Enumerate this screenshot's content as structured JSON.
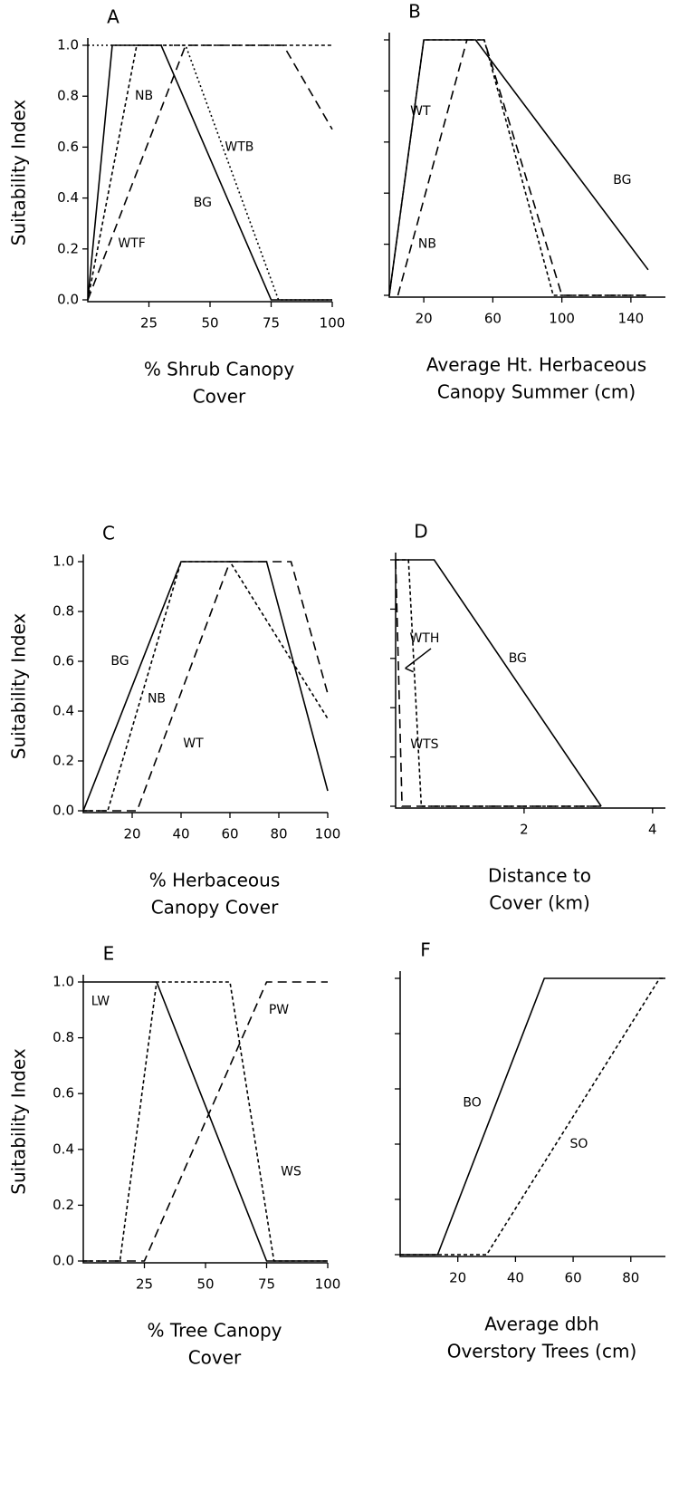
{
  "chart_data": [
    {
      "type": "line",
      "title": "A",
      "ylabel": "Suitability Index",
      "xlabel": [
        "% Shrub Canopy",
        "Cover"
      ],
      "xlim": [
        0,
        100
      ],
      "xticks": [
        25,
        50,
        75,
        100
      ],
      "ylim": [
        0,
        1
      ],
      "yticks": [
        {
          "value": 0,
          "label": "0.0"
        },
        0.2,
        0.4,
        0.6,
        0.8,
        {
          "value": 1,
          "label": "1.0"
        }
      ],
      "ytick_labels": true,
      "series": [
        {
          "name": "BG",
          "color": "#000000",
          "dash": "solid",
          "x": [
            0,
            10,
            30,
            75,
            100
          ],
          "values": [
            0,
            1,
            1,
            0,
            0
          ]
        },
        {
          "name": "NB",
          "color": "#000000",
          "dash": "short-dash",
          "x": [
            0,
            20,
            100
          ],
          "values": [
            0,
            1,
            1
          ]
        },
        {
          "name": "WTB",
          "color": "#000000",
          "dash": "dotted",
          "x": [
            0,
            40,
            78,
            100
          ],
          "values": [
            1,
            1,
            0,
            0
          ]
        },
        {
          "name": "WTF",
          "color": "#000000",
          "dash": "dashed",
          "x": [
            0,
            40,
            80,
            100
          ],
          "values": [
            0,
            1,
            1,
            0.67
          ]
        }
      ]
    },
    {
      "type": "line",
      "title": "B",
      "xlabel": [
        "Average Ht. Herbaceous",
        "Canopy Summer (cm)"
      ],
      "xlim": [
        0,
        160
      ],
      "xticks": [
        20,
        60,
        100,
        140
      ],
      "ylim": [
        0,
        1
      ],
      "yticks": [
        0,
        0.2,
        0.4,
        0.6,
        0.8,
        1
      ],
      "ytick_labels": false,
      "series": [
        {
          "name": "BG",
          "color": "#000000",
          "dash": "solid",
          "x": [
            0,
            20,
            50,
            150
          ],
          "values": [
            0,
            1,
            1,
            0.1
          ]
        },
        {
          "name": "WT",
          "color": "#000000",
          "dash": "short-dash",
          "x": [
            0,
            20,
            55,
            95,
            150
          ],
          "values": [
            0,
            1,
            1,
            0,
            0
          ]
        },
        {
          "name": "NB",
          "color": "#000000",
          "dash": "dashed",
          "x": [
            5,
            45,
            55,
            100,
            150
          ],
          "values": [
            0,
            1,
            1,
            0,
            0
          ]
        }
      ]
    },
    {
      "type": "line",
      "title": "C",
      "ylabel": "Suitability Index",
      "xlabel": [
        "% Herbaceous",
        "Canopy Cover"
      ],
      "xlim": [
        0,
        100
      ],
      "xticks": [
        20,
        40,
        60,
        80,
        100
      ],
      "ylim": [
        0,
        1
      ],
      "yticks": [
        {
          "value": 0,
          "label": "0.0"
        },
        0.2,
        0.4,
        0.6,
        0.8,
        {
          "value": 1,
          "label": "1.0"
        }
      ],
      "ytick_labels": true,
      "series": [
        {
          "name": "BG",
          "color": "#000000",
          "dash": "solid",
          "x": [
            0,
            40,
            75,
            100
          ],
          "values": [
            0,
            1,
            1,
            0.08
          ]
        },
        {
          "name": "NB",
          "color": "#000000",
          "dash": "short-dash",
          "x": [
            0,
            10,
            40,
            60,
            100
          ],
          "values": [
            0,
            0,
            1,
            1,
            0.37
          ]
        },
        {
          "name": "WT",
          "color": "#000000",
          "dash": "dashed",
          "x": [
            0,
            22,
            60,
            85,
            100
          ],
          "values": [
            0,
            0,
            1,
            1,
            0.47
          ]
        }
      ]
    },
    {
      "type": "line",
      "title": "D",
      "xlabel": [
        "Distance to",
        "Cover (km)"
      ],
      "xlim": [
        0,
        4.2
      ],
      "xticks": [
        2,
        4
      ],
      "ylim": [
        0,
        1
      ],
      "yticks": [
        0,
        0.2,
        0.4,
        0.6,
        0.8,
        1
      ],
      "ytick_labels": false,
      "series": [
        {
          "name": "BG",
          "color": "#000000",
          "dash": "solid",
          "x": [
            0,
            0.6,
            3.2
          ],
          "values": [
            1,
            1,
            0
          ]
        },
        {
          "name": "WTS",
          "color": "#000000",
          "dash": "short-dash",
          "x": [
            0,
            0.2,
            0.4,
            3.2
          ],
          "values": [
            1,
            1,
            0,
            0
          ]
        },
        {
          "name": "WTH",
          "color": "#000000",
          "dash": "dashed",
          "x": [
            0,
            0.1,
            3.2
          ],
          "values": [
            1,
            0,
            0
          ]
        }
      ]
    },
    {
      "type": "line",
      "title": "E",
      "ylabel": "Suitability Index",
      "xlabel": [
        "% Tree Canopy",
        "Cover"
      ],
      "xlim": [
        0,
        100
      ],
      "xticks": [
        25,
        50,
        75,
        100
      ],
      "ylim": [
        0,
        1
      ],
      "yticks": [
        {
          "value": 0,
          "label": "0.0"
        },
        0.2,
        0.4,
        0.6,
        0.8,
        {
          "value": 1,
          "label": "1.0"
        }
      ],
      "ytick_labels": true,
      "series": [
        {
          "name": "LW",
          "color": "#000000",
          "dash": "solid",
          "x": [
            0,
            30,
            75,
            100
          ],
          "values": [
            1,
            1,
            0,
            0
          ]
        },
        {
          "name": "WS",
          "color": "#000000",
          "dash": "short-dash",
          "x": [
            0,
            15,
            30,
            60,
            78,
            100
          ],
          "values": [
            0,
            0,
            1,
            1,
            0,
            0
          ]
        },
        {
          "name": "PW",
          "color": "#000000",
          "dash": "dashed",
          "x": [
            0,
            25,
            75,
            100
          ],
          "values": [
            0,
            0,
            1,
            1
          ]
        }
      ]
    },
    {
      "type": "line",
      "title": "F",
      "xlabel": [
        "Average dbh",
        "Overstory Trees (cm)"
      ],
      "xlim": [
        0,
        92
      ],
      "xticks": [
        20,
        40,
        60,
        80
      ],
      "ylim": [
        0,
        1
      ],
      "yticks": [
        0,
        0.2,
        0.4,
        0.6,
        0.8,
        1
      ],
      "ytick_labels": false,
      "series": [
        {
          "name": "BO",
          "color": "#000000",
          "dash": "solid",
          "x": [
            0,
            13,
            50,
            92
          ],
          "values": [
            0,
            0,
            1,
            1
          ]
        },
        {
          "name": "SO",
          "color": "#000000",
          "dash": "short-dash",
          "x": [
            0,
            30,
            90,
            92
          ],
          "values": [
            0,
            0,
            1,
            1
          ]
        }
      ]
    }
  ]
}
